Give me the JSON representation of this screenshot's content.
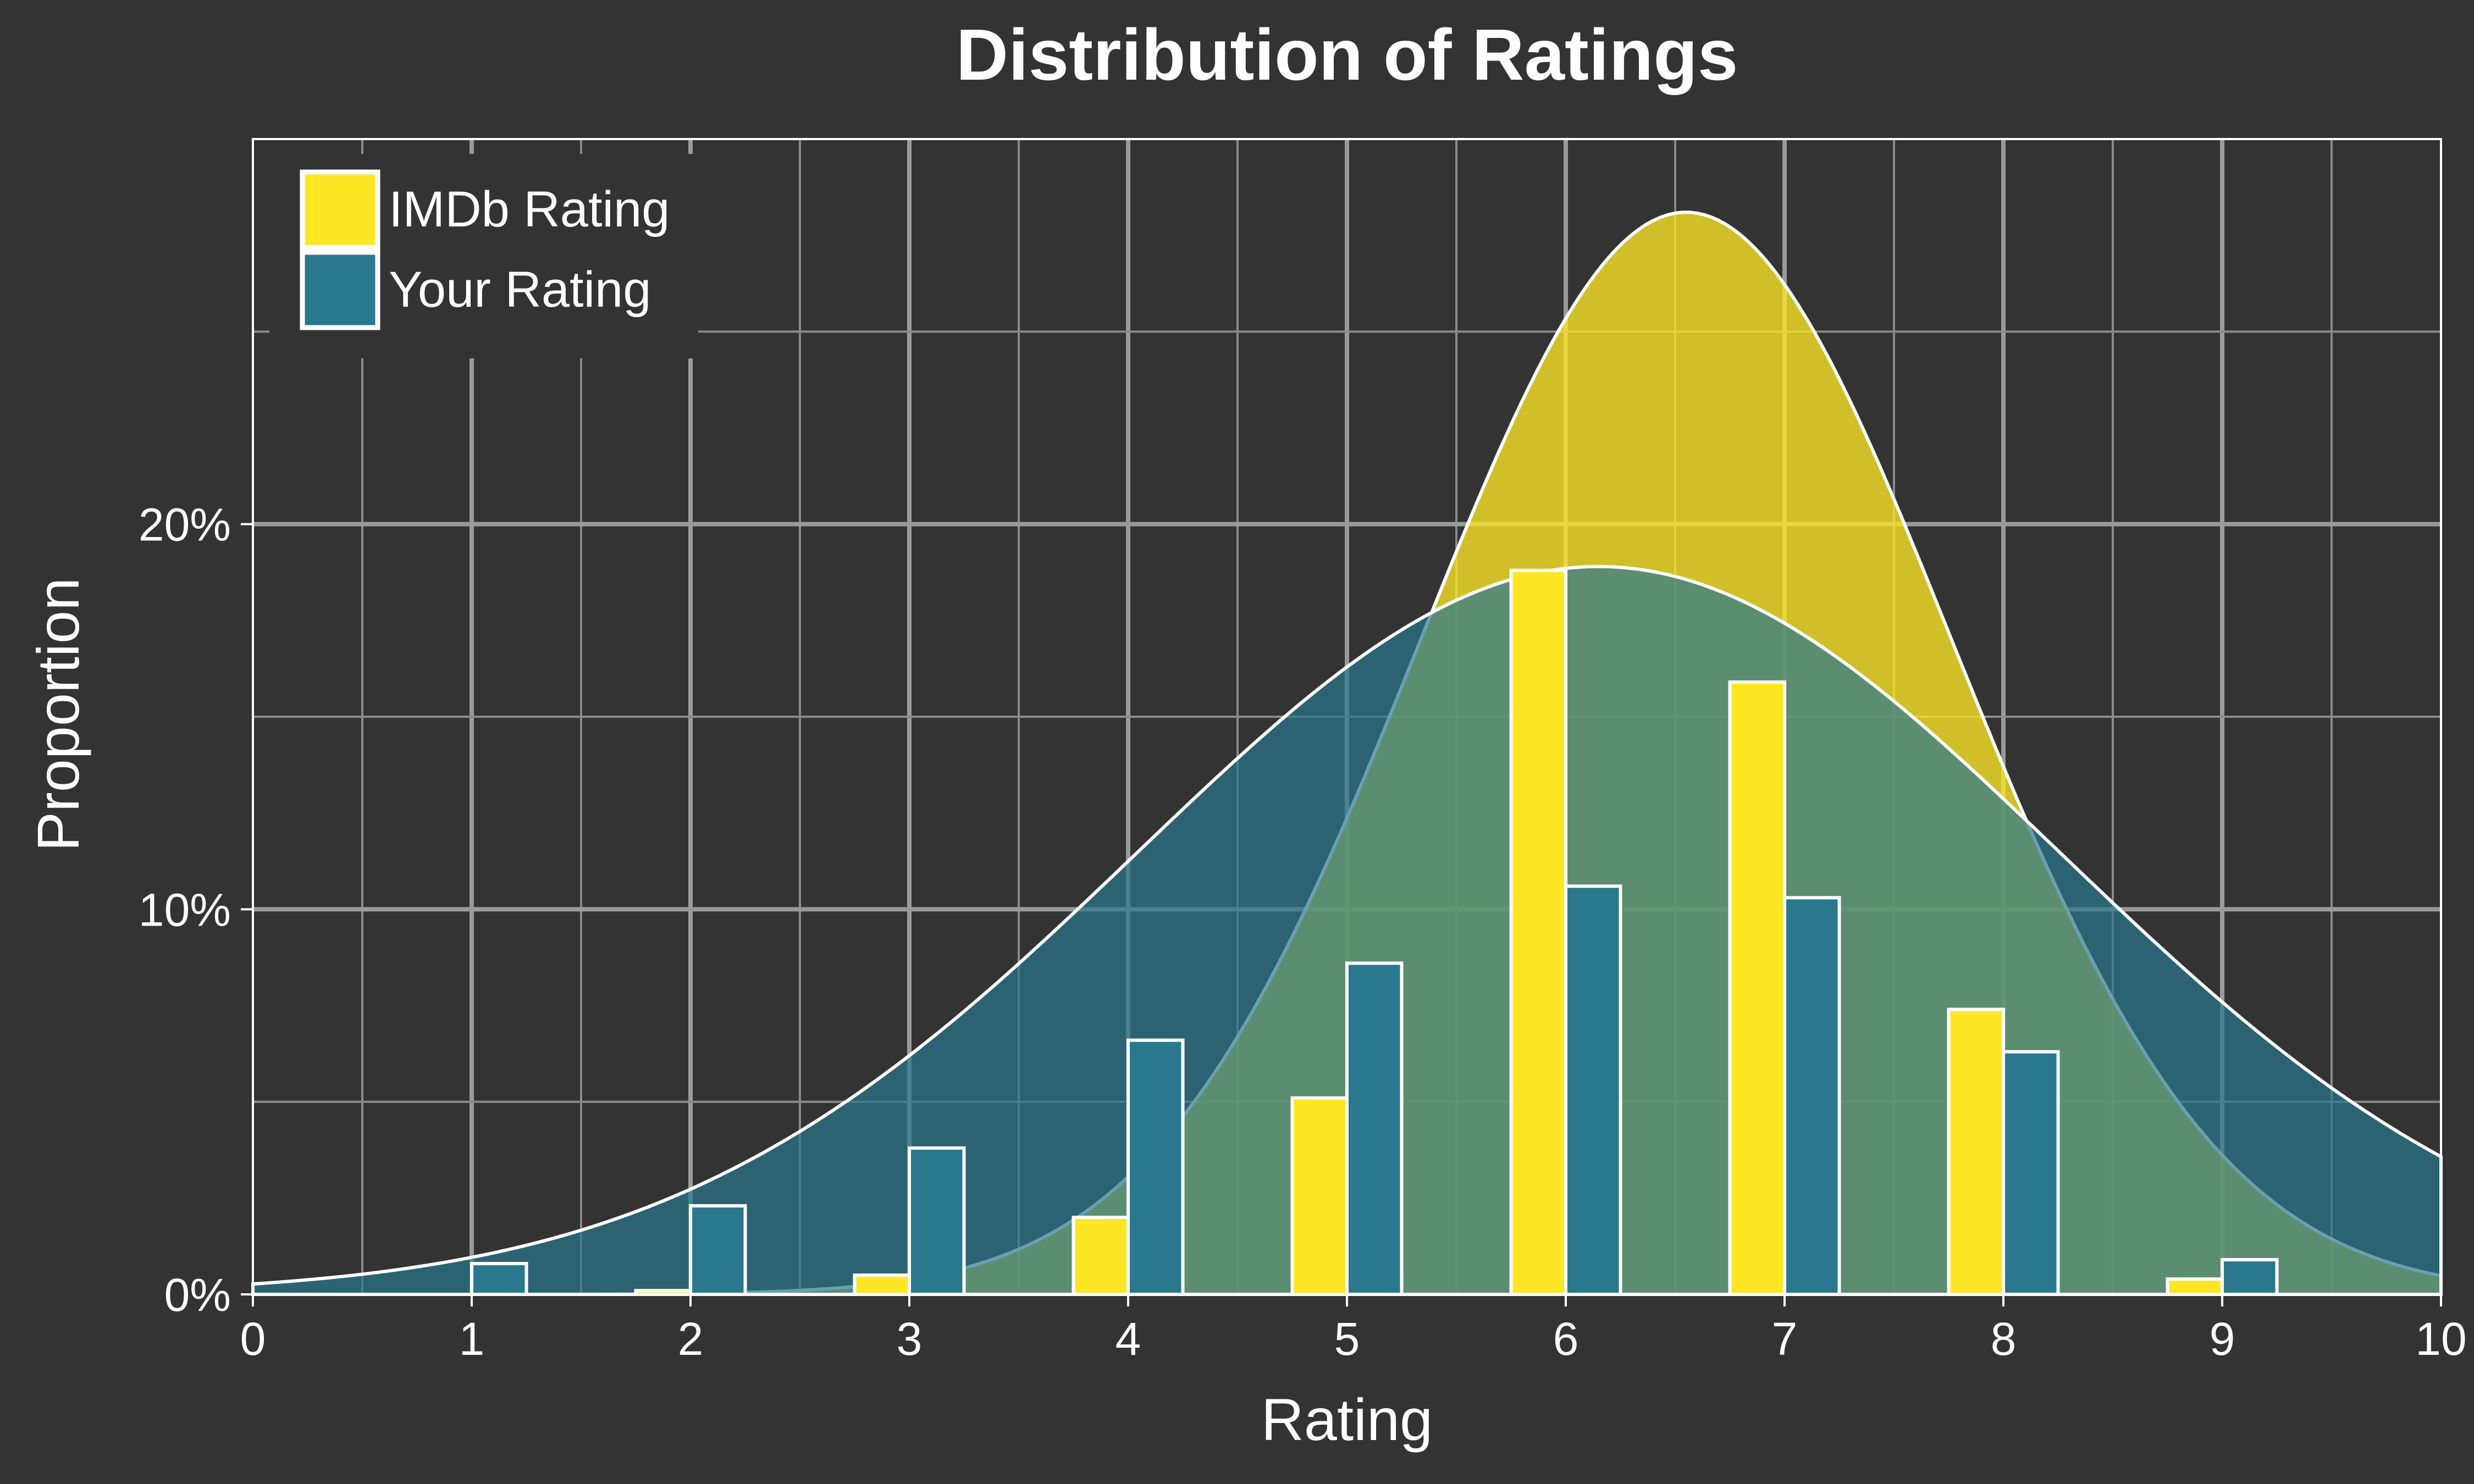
{
  "chart_data": {
    "type": "bar",
    "title": "Distribution of Ratings",
    "xlabel": "Rating",
    "ylabel": "Proportion",
    "xlim": [
      0,
      10
    ],
    "ylim": [
      0,
      0.3
    ],
    "x_ticks": [
      "0",
      "1",
      "2",
      "3",
      "4",
      "5",
      "6",
      "7",
      "8",
      "9",
      "10"
    ],
    "y_ticks": [
      {
        "value": 0,
        "label": "0%"
      },
      {
        "value": 0.1,
        "label": "10%"
      },
      {
        "value": 0.2,
        "label": "20%"
      }
    ],
    "grid": true,
    "legend_position": "top-left",
    "categories": [
      1,
      2,
      3,
      4,
      5,
      6,
      7,
      8,
      9
    ],
    "series": [
      {
        "name": "IMDb Rating",
        "color": "#FDE725",
        "values": [
          0.0,
          0.001,
          0.005,
          0.02,
          0.051,
          0.188,
          0.159,
          0.074,
          0.004
        ],
        "density": {
          "type": "normal",
          "mean": 6.55,
          "sd": 1.21,
          "peak": 0.281,
          "fill_opacity": 0.78
        }
      },
      {
        "name": "Your Rating",
        "color": "#2A788E",
        "values": [
          0.008,
          0.023,
          0.038,
          0.066,
          0.086,
          0.106,
          0.103,
          0.063,
          0.009
        ],
        "density": {
          "type": "normal",
          "mean": 6.15,
          "sd": 2.11,
          "peak": 0.189,
          "fill_opacity": 0.7
        }
      }
    ]
  }
}
